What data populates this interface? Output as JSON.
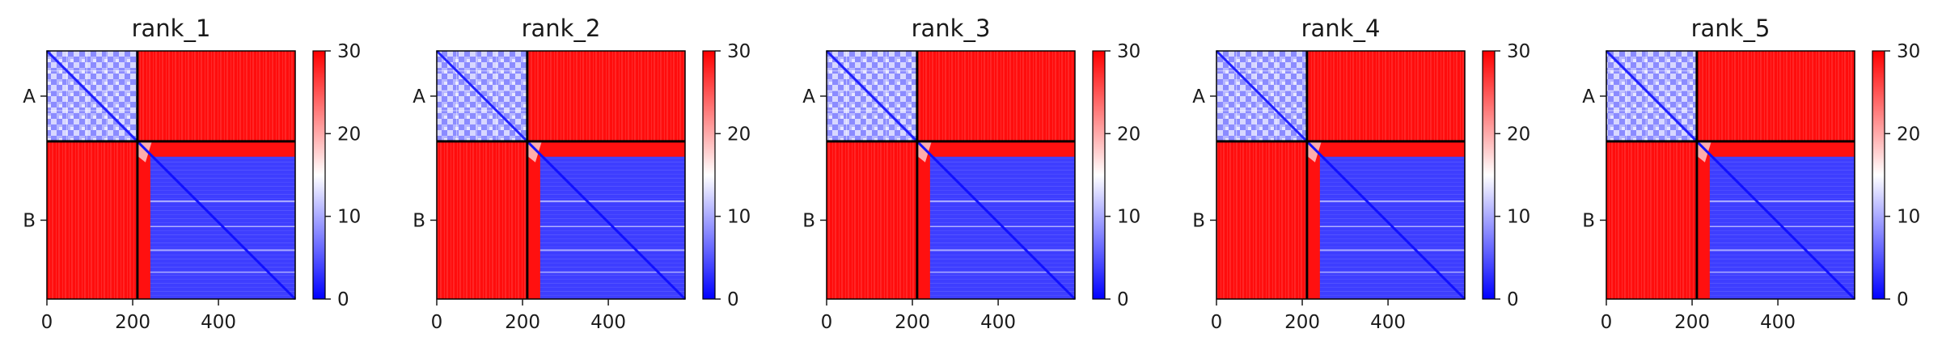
{
  "chart_data": {
    "type": "heatmap",
    "title": "",
    "colormap": {
      "name": "bwr",
      "low_color": "#0000ff",
      "mid_color": "#ffffff",
      "high_color": "#ff0000"
    },
    "colorbar": {
      "range": [
        0,
        30
      ],
      "ticks": [
        0,
        10,
        20,
        30
      ]
    },
    "axes": {
      "extent": [
        0,
        579
      ],
      "x_ticks": [
        0,
        200,
        400
      ],
      "chain_boundary": 211,
      "y_tick_labels": [
        {
          "label": "A",
          "position": 105.5
        },
        {
          "label": "B",
          "position": 395
        }
      ]
    },
    "panels": [
      {
        "title": "rank_1",
        "blocks": {
          "A_A": "mixed blue/white, 0-20",
          "A_B": 30,
          "B_A": 30,
          "B_B_head": 30,
          "B_B_core": "mostly blue, ~3-8 with faint white stripes",
          "diagonal": 0
        }
      },
      {
        "title": "rank_2",
        "blocks": {
          "A_A": "mixed blue/white, 0-20",
          "A_B": 30,
          "B_A": 30,
          "B_B_head": 30,
          "B_B_core": "mostly blue, ~3-8 with faint white stripes",
          "diagonal": 0
        }
      },
      {
        "title": "rank_3",
        "blocks": {
          "A_A": "mixed blue/white, 0-20",
          "A_B": 30,
          "B_A": 30,
          "B_B_head": 30,
          "B_B_core": "mostly blue, ~3-8 with faint white stripes",
          "diagonal": 0
        }
      },
      {
        "title": "rank_4",
        "blocks": {
          "A_A": "mixed blue/white, 0-20",
          "A_B": 30,
          "B_A": 30,
          "B_B_head": 30,
          "B_B_core": "mostly blue, ~3-8 with faint white stripes",
          "diagonal": 0
        }
      },
      {
        "title": "rank_5",
        "blocks": {
          "A_A": "mixed blue/white, 0-20",
          "A_B": 30,
          "B_A": 30,
          "B_B_head": 30,
          "B_B_core": "mostly blue, ~3-8 with faint white stripes",
          "diagonal": 0
        }
      }
    ]
  }
}
